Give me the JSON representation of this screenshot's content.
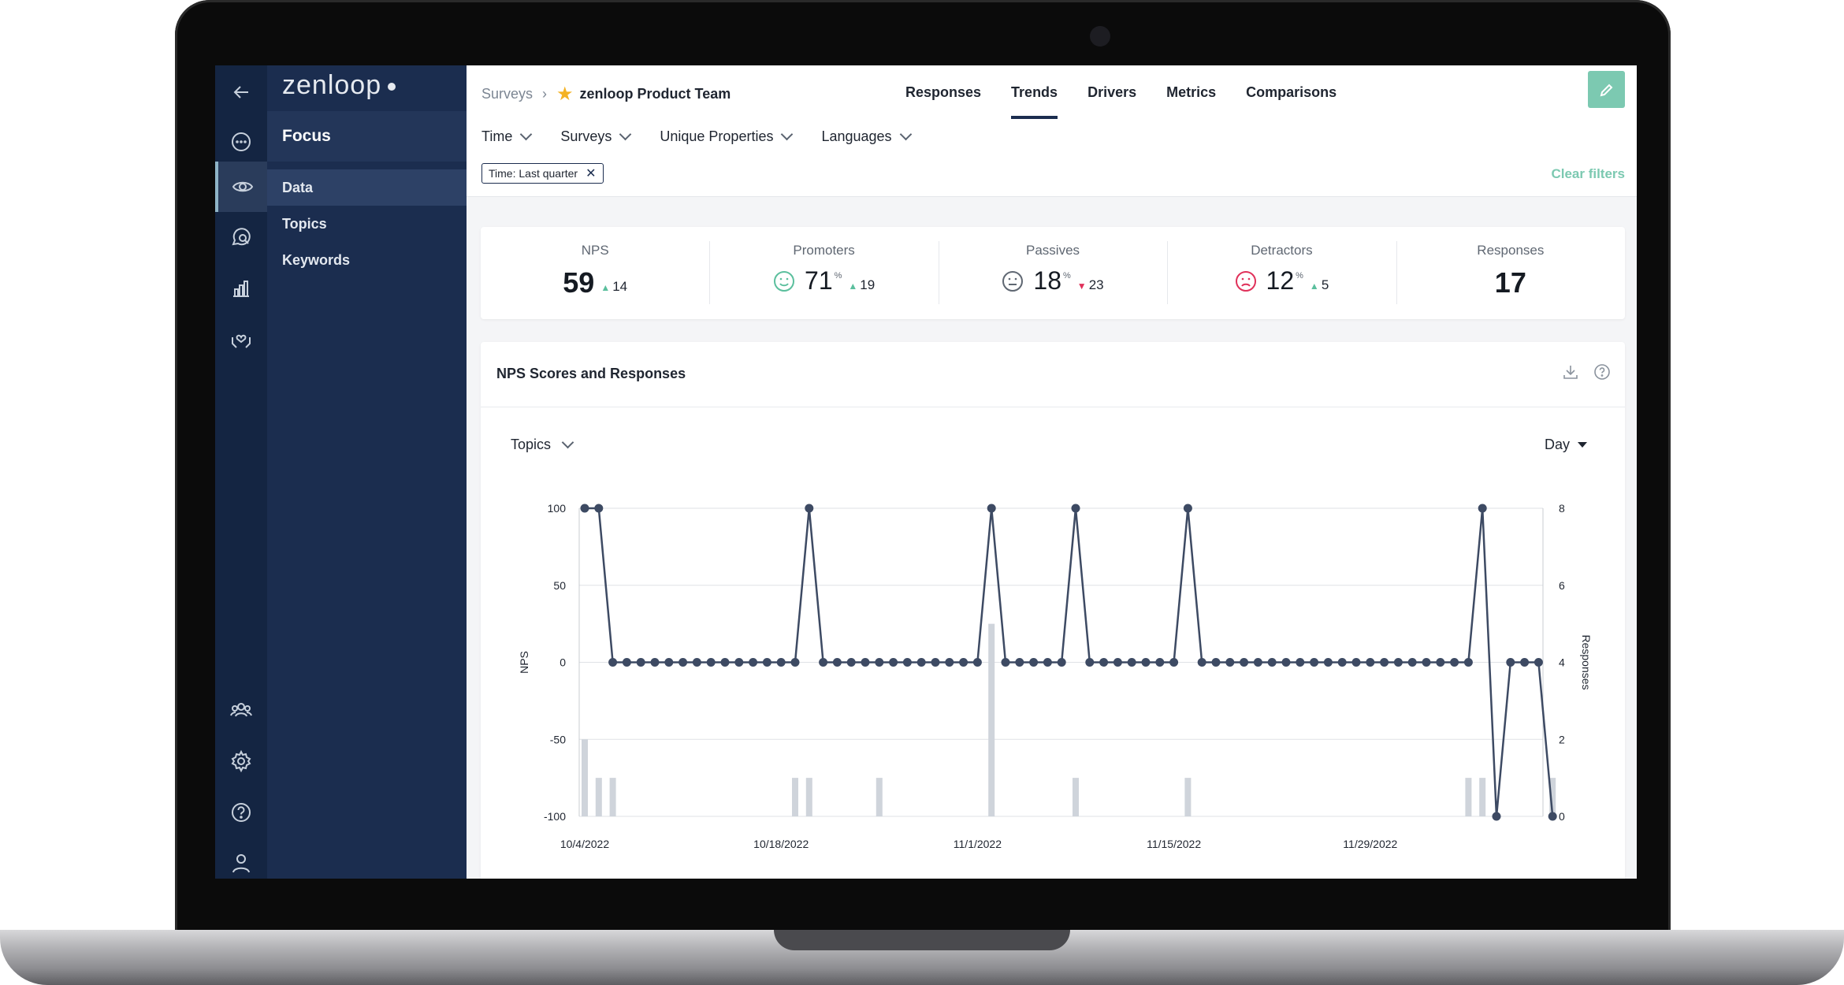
{
  "brand": "zenloop",
  "nav": {
    "section": "Focus",
    "items": [
      {
        "label": "Data",
        "active": true
      },
      {
        "label": "Topics",
        "active": false
      },
      {
        "label": "Keywords",
        "active": false
      }
    ]
  },
  "rail_icons": [
    "back-arrow-icon",
    "chat-bubble-icon",
    "eye-icon",
    "search-chat-icon",
    "bar-chart-icon",
    "hands-heart-icon",
    "team-icon",
    "gear-icon",
    "help-icon",
    "user-icon"
  ],
  "breadcrumb": {
    "root": "Surveys",
    "current": "zenloop Product Team"
  },
  "tabs": [
    {
      "label": "Responses",
      "active": false
    },
    {
      "label": "Trends",
      "active": true
    },
    {
      "label": "Drivers",
      "active": false
    },
    {
      "label": "Metrics",
      "active": false
    },
    {
      "label": "Comparisons",
      "active": false
    }
  ],
  "filters": [
    "Time",
    "Surveys",
    "Unique Properties",
    "Languages"
  ],
  "chip": "Time: Last quarter",
  "clear_filters": "Clear filters",
  "kpis": {
    "nps": {
      "label": "NPS",
      "value": "59",
      "delta": "14",
      "direction": "up"
    },
    "promoters": {
      "label": "Promoters",
      "value": "71",
      "unit": "%",
      "delta": "19",
      "direction": "up"
    },
    "passives": {
      "label": "Passives",
      "value": "18",
      "unit": "%",
      "delta": "23",
      "direction": "down"
    },
    "detractors": {
      "label": "Detractors",
      "value": "12",
      "unit": "%",
      "delta": "5",
      "direction": "up"
    },
    "responses": {
      "label": "Responses",
      "value": "17"
    }
  },
  "colors": {
    "accent": "#7cc9b1",
    "navy": "#1b2d4f",
    "line": "#3d4a63",
    "bar": "#cfd4db",
    "up": "#5bbf9d",
    "down": "#e0315a"
  },
  "chart": {
    "title": "NPS Scores and Responses",
    "topics_label": "Topics",
    "interval_label": "Day"
  },
  "chart_data": {
    "type": "line",
    "title": "NPS Scores and Responses",
    "ylabel": "NPS",
    "y2label": "Responses",
    "ylim": [
      -100,
      100
    ],
    "y2lim": [
      0,
      8
    ],
    "yticks": [
      100,
      50,
      0,
      -50,
      -100
    ],
    "y2ticks": [
      8,
      6,
      4,
      2,
      0
    ],
    "xtick_labels": [
      "10/4/2022",
      "10/18/2022",
      "11/1/2022",
      "11/15/2022",
      "11/29/2022"
    ],
    "x_start": "10/4/2022",
    "series": [
      {
        "name": "NPS",
        "type": "line",
        "values": [
          100,
          100,
          0,
          0,
          0,
          0,
          0,
          0,
          0,
          0,
          0,
          0,
          0,
          0,
          0,
          0,
          100,
          0,
          0,
          0,
          0,
          0,
          0,
          0,
          0,
          0,
          0,
          0,
          0,
          100,
          0,
          0,
          0,
          0,
          0,
          100,
          0,
          0,
          0,
          0,
          0,
          0,
          0,
          100,
          0,
          0,
          0,
          0,
          0,
          0,
          0,
          0,
          0,
          0,
          0,
          0,
          0,
          0,
          0,
          0,
          0,
          0,
          0,
          0,
          100,
          -100,
          0,
          0,
          0,
          -100
        ]
      },
      {
        "name": "Responses",
        "type": "bar",
        "values": [
          2,
          1,
          1,
          0,
          0,
          0,
          0,
          0,
          0,
          0,
          0,
          0,
          0,
          0,
          0,
          1,
          1,
          0,
          0,
          0,
          0,
          1,
          0,
          0,
          0,
          0,
          0,
          0,
          0,
          5,
          0,
          0,
          0,
          0,
          0,
          1,
          0,
          0,
          0,
          0,
          0,
          0,
          0,
          1,
          0,
          0,
          0,
          0,
          0,
          0,
          0,
          0,
          0,
          0,
          0,
          0,
          0,
          0,
          0,
          0,
          0,
          0,
          0,
          1,
          1,
          0,
          0,
          0,
          0,
          1
        ]
      }
    ]
  }
}
